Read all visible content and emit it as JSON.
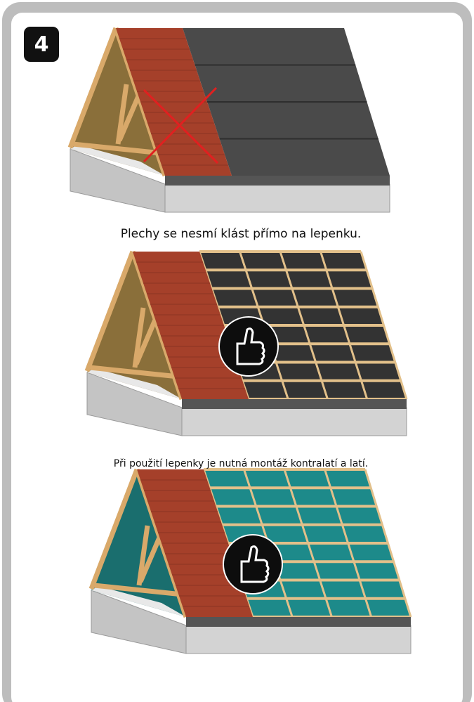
{
  "step": "4",
  "captions": [
    "Plechy se nesmí klást přímo na lepenku.",
    "Při použití lepenky je nutná montáž kontralatí a latí."
  ]
}
